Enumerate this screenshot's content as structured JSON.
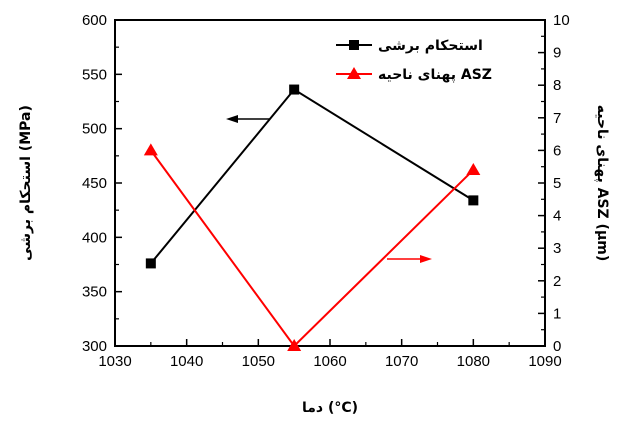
{
  "chart_data": {
    "type": "line",
    "x": [
      1035,
      1055,
      1080
    ],
    "xlabel": "دما (°C)",
    "xlim": [
      1030,
      1090
    ],
    "xticks": [
      1030,
      1040,
      1050,
      1060,
      1070,
      1080,
      1090
    ],
    "left_axis": {
      "label": "استحکام برشی (MPa)",
      "ylim": [
        300,
        600
      ],
      "ticks": [
        300,
        350,
        400,
        450,
        500,
        550,
        600
      ]
    },
    "right_axis": {
      "label": "پهنای ناحیه ASZ (µm)",
      "ylim": [
        0,
        10
      ],
      "ticks": [
        0,
        1,
        2,
        3,
        4,
        5,
        6,
        7,
        8,
        9,
        10
      ]
    },
    "series": [
      {
        "name": "استحکام برشی",
        "axis": "left",
        "values": [
          376,
          536,
          434
        ],
        "color": "#000000",
        "marker": "square"
      },
      {
        "name": "پهنای ناحیه ASZ",
        "axis": "right",
        "values": [
          6.0,
          0.0,
          5.4
        ],
        "color": "#ff0000",
        "marker": "triangle"
      }
    ],
    "legend_position": "top-right",
    "grid": false
  }
}
